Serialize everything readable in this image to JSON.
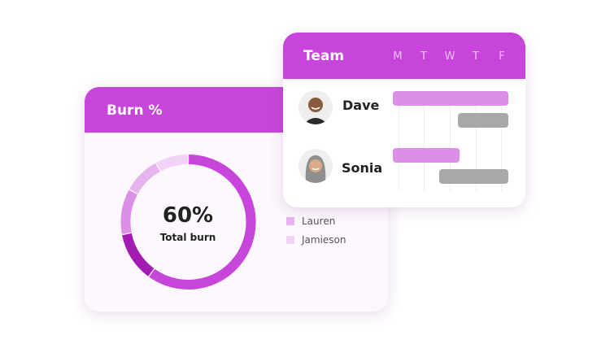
{
  "burn": {
    "title": "Burn %",
    "total_value": "60%",
    "total_label": "Total burn",
    "legend": [
      {
        "label": "Lauren",
        "color": "#e6b3ef"
      },
      {
        "label": "Jamieson",
        "color": "#f2d3f7"
      }
    ],
    "segments": [
      {
        "percent": 60,
        "color": "#c845dc"
      },
      {
        "percent": 12,
        "color": "#a21cb4"
      },
      {
        "percent": 11,
        "color": "#dc8fe6"
      },
      {
        "percent": 9,
        "color": "#e6b3ef"
      },
      {
        "percent": 8,
        "color": "#f2d3f7"
      }
    ]
  },
  "team": {
    "title": "Team",
    "days": [
      "M",
      "T",
      "W",
      "T",
      "F"
    ],
    "members": [
      {
        "name": "Dave",
        "avatar": "dave-photo",
        "tasks": [
          {
            "start": 0,
            "end": 5,
            "color": "#dc8fe6"
          },
          {
            "start": 2.8,
            "end": 5,
            "color": "#a8a8a8"
          }
        ]
      },
      {
        "name": "Sonia",
        "avatar": "sonia-photo",
        "tasks": [
          {
            "start": 0,
            "end": 2.9,
            "color": "#dc8fe6"
          },
          {
            "start": 2.0,
            "end": 5,
            "color": "#a8a8a8"
          }
        ]
      }
    ]
  }
}
